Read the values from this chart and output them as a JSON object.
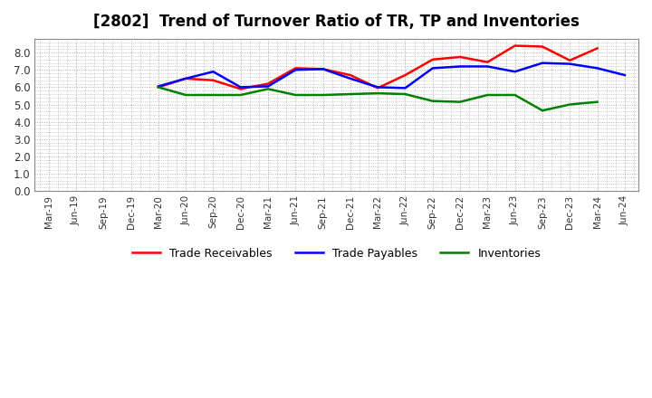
{
  "title": "[2802]  Trend of Turnover Ratio of TR, TP and Inventories",
  "x_labels": [
    "Mar-19",
    "Jun-19",
    "Sep-19",
    "Dec-19",
    "Mar-20",
    "Jun-20",
    "Sep-20",
    "Dec-20",
    "Mar-21",
    "Jun-21",
    "Sep-21",
    "Dec-21",
    "Mar-22",
    "Jun-22",
    "Sep-22",
    "Dec-22",
    "Mar-23",
    "Jun-23",
    "Sep-23",
    "Dec-23",
    "Mar-24",
    "Jun-24"
  ],
  "trade_receivables": [
    null,
    null,
    null,
    null,
    6.0,
    6.5,
    6.4,
    5.9,
    6.2,
    7.1,
    7.05,
    6.7,
    5.95,
    6.7,
    7.6,
    7.75,
    7.45,
    8.4,
    8.35,
    7.55,
    8.25,
    null
  ],
  "trade_payables": [
    null,
    null,
    null,
    null,
    6.05,
    6.5,
    6.9,
    6.0,
    6.05,
    7.0,
    7.05,
    6.5,
    6.0,
    5.95,
    7.1,
    7.2,
    7.2,
    6.9,
    7.4,
    7.35,
    7.1,
    6.7
  ],
  "inventories": [
    null,
    null,
    null,
    null,
    6.0,
    5.55,
    5.55,
    5.55,
    5.9,
    5.55,
    5.55,
    5.6,
    5.65,
    5.6,
    5.2,
    5.15,
    5.55,
    5.55,
    4.65,
    5.0,
    5.15,
    null
  ],
  "tr_color": "#ff0000",
  "tp_color": "#0000ff",
  "inv_color": "#008000",
  "ylim": [
    0.0,
    8.8
  ],
  "yticks": [
    0.0,
    1.0,
    2.0,
    3.0,
    4.0,
    5.0,
    6.0,
    7.0,
    8.0
  ],
  "background_color": "#ffffff",
  "plot_bg_color": "#ffffff",
  "grid_color": "#aaaaaa",
  "title_fontsize": 12,
  "legend_labels": [
    "Trade Receivables",
    "Trade Payables",
    "Inventories"
  ]
}
